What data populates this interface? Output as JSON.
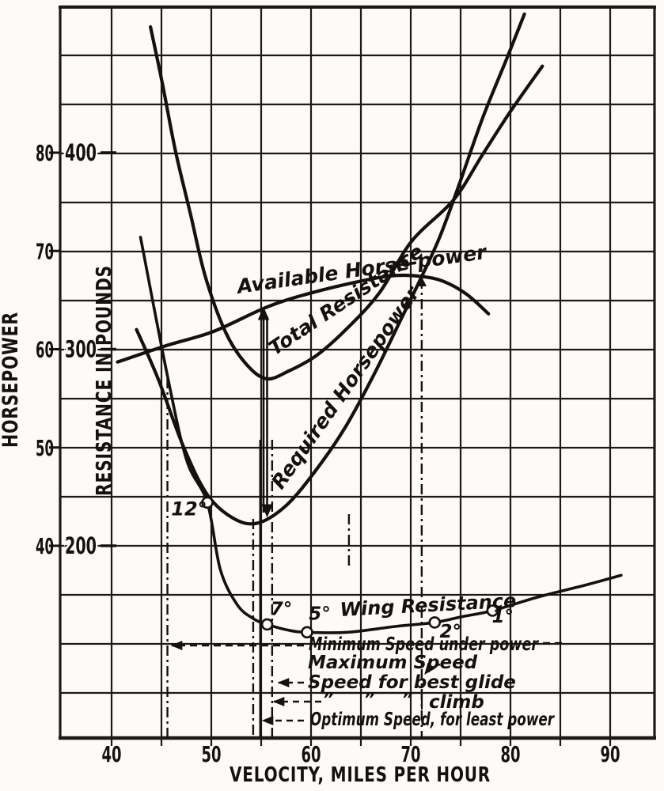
{
  "page": {
    "background": "#fcfbf7",
    "ink": "#14110e"
  },
  "chart_data": {
    "type": "line",
    "title": "",
    "xlabel": "VELOCITY, MILES PER HOUR",
    "x_ticks": [
      40,
      50,
      60,
      70,
      80,
      90
    ],
    "x_range": [
      35,
      94.5
    ],
    "ylabel_left": "HORSEPOWER",
    "hp_ticks": [
      40,
      50,
      60,
      70,
      80
    ],
    "hp_range": [
      20.5,
      95
    ],
    "ylabel_inner": "RESISTANCE IN POUNDS",
    "lbs_ticks": [
      200,
      300,
      400
    ],
    "lbs_range": [
      102,
      497
    ],
    "grid": "on",
    "legend_position": "labels-on-curves",
    "series": [
      {
        "id": "available_hp",
        "label": "Available Horse-power",
        "unit": "hp",
        "points": [
          [
            40.6,
            58.7
          ],
          [
            45.6,
            60.4
          ],
          [
            50.2,
            61.8
          ],
          [
            55.6,
            64.3
          ],
          [
            59.9,
            65.7
          ],
          [
            65.3,
            67.0
          ],
          [
            68.5,
            67.5
          ],
          [
            71.1,
            67.4
          ],
          [
            73.3,
            66.9
          ],
          [
            75.6,
            65.6
          ],
          [
            77.8,
            63.6
          ]
        ]
      },
      {
        "id": "required_hp",
        "label": "Required Horsepower",
        "unit": "hp",
        "points": [
          [
            42.5,
            62.0
          ],
          [
            44.7,
            56.9
          ],
          [
            47.2,
            50.1
          ],
          [
            49.6,
            45.2
          ],
          [
            52.2,
            42.8
          ],
          [
            54.6,
            42.3
          ],
          [
            57.4,
            44.0
          ],
          [
            60.2,
            47.3
          ],
          [
            63.4,
            52.0
          ],
          [
            66.4,
            57.6
          ],
          [
            69.0,
            63.0
          ],
          [
            71.1,
            67.4
          ],
          [
            72.9,
            71.4
          ],
          [
            74.8,
            76.6
          ],
          [
            77.2,
            83.5
          ],
          [
            79.6,
            89.5
          ],
          [
            81.4,
            94.1
          ]
        ]
      },
      {
        "id": "total_resistance",
        "label": "Total Resistance",
        "unit": "lbs",
        "points": [
          [
            43.9,
            464
          ],
          [
            45.1,
            435
          ],
          [
            46.4,
            401
          ],
          [
            47.9,
            369
          ],
          [
            49.4,
            337
          ],
          [
            51.4,
            309
          ],
          [
            53.4,
            293
          ],
          [
            55.5,
            285
          ],
          [
            57.8,
            289
          ],
          [
            60.6,
            297
          ],
          [
            63.7,
            311
          ],
          [
            66.9,
            329
          ],
          [
            70.1,
            355
          ],
          [
            74.3,
            376
          ],
          [
            77.2,
            399
          ],
          [
            80.0,
            421
          ],
          [
            83.2,
            444
          ]
        ]
      },
      {
        "id": "wing_resistance",
        "label": "Wing Resistance",
        "unit": "lbs",
        "points": [
          [
            42.9,
            357
          ],
          [
            45.5,
            289
          ],
          [
            47.5,
            244
          ],
          [
            49.6,
            222
          ],
          [
            50.9,
            188
          ],
          [
            52.6,
            170
          ],
          [
            54.2,
            163
          ],
          [
            55.6,
            160
          ],
          [
            57.8,
            157
          ],
          [
            59.6,
            156
          ],
          [
            63.7,
            156
          ],
          [
            68.5,
            159
          ],
          [
            72.4,
            161
          ],
          [
            75.2,
            164
          ],
          [
            78.2,
            167
          ],
          [
            82.8,
            174
          ],
          [
            87.5,
            180
          ],
          [
            91.1,
            185
          ]
        ]
      }
    ],
    "angle_markers": [
      {
        "label": "12°",
        "mph": 49.6,
        "lbs": 222
      },
      {
        "label": "7°",
        "mph": 55.6,
        "lbs": 160
      },
      {
        "label": "5°",
        "mph": 59.6,
        "lbs": 156
      },
      {
        "label": "2°",
        "mph": 72.4,
        "lbs": 161
      },
      {
        "label": "1°",
        "mph": 78.2,
        "lbs": 167
      }
    ],
    "speed_lines": [
      {
        "id": "minimum-speed",
        "mph": 45.6,
        "style": "dashdot"
      },
      {
        "id": "optimum-speed",
        "mph": 54.2,
        "style": "dashdot"
      },
      {
        "id": "optimum-speed-2",
        "mph": 54.9,
        "style": "solid"
      },
      {
        "id": "best-climb-speed",
        "mph": 56.1,
        "style": "dashdot"
      },
      {
        "id": "economy-mark",
        "mph": 63.8,
        "style": "dashdot"
      },
      {
        "id": "maximum-speed",
        "mph": 71.1,
        "style": "dashdot"
      }
    ],
    "callouts": {
      "min_speed": "Minimum Speed under power",
      "max_speed": "Maximum Speed",
      "best_glide": "Speed for best glide",
      "ditto_marks": [
        "”",
        "”",
        "”"
      ],
      "climb": "climb",
      "optimum": "Optimum Speed, for least power"
    }
  }
}
